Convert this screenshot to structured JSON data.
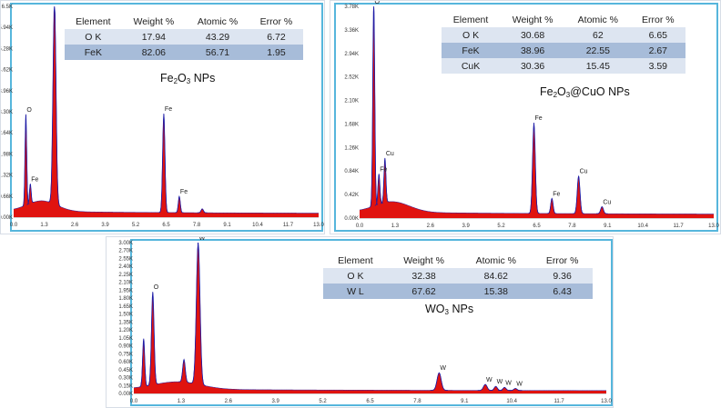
{
  "chart_data": [
    {
      "type": "line",
      "panel": "top-left",
      "caption": {
        "base": "Fe",
        "sub1": "2",
        "mid": "O",
        "sub2": "3",
        "rest": " NPs"
      },
      "table": {
        "headers": [
          "Element",
          "Weight %",
          "Atomic %",
          "Error %"
        ],
        "rows": [
          [
            "O K",
            "17.94",
            "43.29",
            "6.72"
          ],
          [
            "FeK",
            "82.06",
            "56.71",
            "1.95"
          ]
        ]
      },
      "xlim": [
        0,
        13
      ],
      "ylim": [
        0,
        6.5
      ],
      "x_ticks": [
        "0.0",
        "1.3",
        "2.6",
        "3.9",
        "5.2",
        "6.5",
        "7.8",
        "9.1",
        "10.4",
        "11.7",
        "13.0"
      ],
      "y_ticks": [
        "0.00K",
        "0.66K",
        "1.32K",
        "1.98K",
        "2.64K",
        "3.30K",
        "3.96K",
        "4.62K",
        "5.28K",
        "5.94K",
        "6.5K"
      ],
      "peaks": [
        {
          "x": 0.52,
          "y": 2.8,
          "w": 0.05,
          "label": "O"
        },
        {
          "x": 0.71,
          "y": 0.6,
          "w": 0.05,
          "label": "Fe"
        },
        {
          "x": 1.74,
          "y": 6.3,
          "w": 0.09,
          "label": ""
        },
        {
          "x": 6.4,
          "y": 3.05,
          "w": 0.07,
          "label": "Fe"
        },
        {
          "x": 7.06,
          "y": 0.5,
          "w": 0.06,
          "label": "Fe"
        },
        {
          "x": 8.04,
          "y": 0.12,
          "w": 0.07,
          "label": ""
        }
      ]
    },
    {
      "type": "line",
      "panel": "top-right",
      "caption": {
        "base": "Fe",
        "sub1": "2",
        "mid": "O",
        "sub2": "3",
        "rest": "@CuO  NPs"
      },
      "table": {
        "headers": [
          "Element",
          "Weight %",
          "Atomic %",
          "Error %"
        ],
        "rows": [
          [
            "O K",
            "30.68",
            "62",
            "6.65"
          ],
          [
            "FeK",
            "38.96",
            "22.55",
            "2.67"
          ],
          [
            "CuK",
            "30.36",
            "15.45",
            "3.59"
          ]
        ]
      },
      "xlim": [
        0,
        13
      ],
      "ylim": [
        0,
        4.2
      ],
      "x_ticks": [
        "0.0",
        "1.3",
        "2.6",
        "3.9",
        "5.2",
        "6.5",
        "7.8",
        "9.1",
        "10.4",
        "11.7",
        "13.0"
      ],
      "y_ticks": [
        "0.00K",
        "0.42K",
        "0.84K",
        "1.26K",
        "1.68K",
        "2.10K",
        "2.52K",
        "2.94K",
        "3.36K",
        "3.78K"
      ],
      "peaks": [
        {
          "x": 0.52,
          "y": 4.1,
          "w": 0.05,
          "label": "O"
        },
        {
          "x": 0.71,
          "y": 0.6,
          "w": 0.05,
          "label": "Fe"
        },
        {
          "x": 0.93,
          "y": 0.88,
          "w": 0.05,
          "label": "Cu"
        },
        {
          "x": 6.4,
          "y": 1.8,
          "w": 0.07,
          "label": "Fe"
        },
        {
          "x": 7.06,
          "y": 0.3,
          "w": 0.06,
          "label": "Fe"
        },
        {
          "x": 8.04,
          "y": 0.75,
          "w": 0.07,
          "label": "Cu"
        },
        {
          "x": 8.9,
          "y": 0.14,
          "w": 0.07,
          "label": "Cu"
        }
      ]
    },
    {
      "type": "line",
      "panel": "bottom",
      "caption": {
        "base": "WO",
        "sub1": "3",
        "mid": "",
        "sub2": "",
        "rest": " NPs"
      },
      "table": {
        "headers": [
          "Element",
          "Weight %",
          "Atomic %",
          "Error %"
        ],
        "rows": [
          [
            "O K",
            "32.38",
            "84.62",
            "9.36"
          ],
          [
            "W L",
            "67.62",
            "15.38",
            "6.43"
          ]
        ]
      },
      "xlim": [
        0,
        13
      ],
      "ylim": [
        0,
        3.0
      ],
      "x_ticks": [
        "0.0",
        "1.3",
        "2.6",
        "3.9",
        "5.2",
        "6.5",
        "7.8",
        "9.1",
        "10.4",
        "11.7",
        "13.0"
      ],
      "y_ticks": [
        "0.00K",
        "0.15K",
        "0.30K",
        "0.45K",
        "0.60K",
        "0.75K",
        "0.90K",
        "1.05K",
        "1.20K",
        "1.35K",
        "1.50K",
        "1.65K",
        "1.80K",
        "1.95K",
        "2.10K",
        "2.25K",
        "2.40K",
        "2.55K",
        "2.70K",
        "3.00K"
      ],
      "peaks": [
        {
          "x": 0.27,
          "y": 0.95,
          "w": 0.04,
          "label": ""
        },
        {
          "x": 0.52,
          "y": 1.85,
          "w": 0.05,
          "label": "O"
        },
        {
          "x": 1.38,
          "y": 0.45,
          "w": 0.05,
          "label": ""
        },
        {
          "x": 1.77,
          "y": 2.85,
          "w": 0.07,
          "label": "W"
        },
        {
          "x": 8.4,
          "y": 0.35,
          "w": 0.08,
          "label": "W"
        },
        {
          "x": 9.67,
          "y": 0.12,
          "w": 0.07,
          "label": "W"
        },
        {
          "x": 9.96,
          "y": 0.08,
          "w": 0.06,
          "label": "W"
        },
        {
          "x": 10.2,
          "y": 0.06,
          "w": 0.06,
          "label": "W"
        },
        {
          "x": 10.5,
          "y": 0.04,
          "w": 0.06,
          "label": "W"
        }
      ]
    }
  ],
  "colors": {
    "spectrum_fill": "#e0130f",
    "spectrum_line": "#1d1ba6",
    "panel_frame": "#56b6dc",
    "table_row_light": "#dde5f1",
    "table_row_dark": "#a7bcd9"
  }
}
